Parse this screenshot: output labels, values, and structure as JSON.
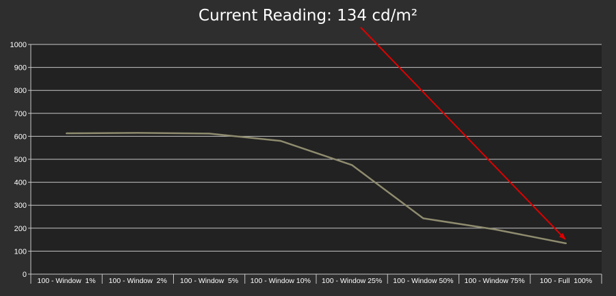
{
  "colors": {
    "background": "#2e2e2e",
    "plot_background": "#222222",
    "grid": "#c8c8c8",
    "line": "#8f8c6f",
    "arrow": "#e00000",
    "text": "#ffffff"
  },
  "chart_data": {
    "type": "line",
    "title": "Current Reading: 134 cd/m²",
    "xlabel": "",
    "ylabel": "",
    "categories": [
      "100 - Window  1%",
      "100 - Window  2%",
      "100 - Window  5%",
      "100 - Window 10%",
      "100 - Window 25%",
      "100 - Window 50%",
      "100 - Window 75%",
      "100 - Full  100%"
    ],
    "series": [
      {
        "values": [
          613,
          615,
          612,
          580,
          475,
          243,
          195,
          134
        ]
      }
    ],
    "ylim": [
      0,
      1000
    ],
    "yticks": [
      0,
      100,
      200,
      300,
      400,
      500,
      600,
      700,
      800,
      900,
      1000
    ],
    "grid": true,
    "legend": "none",
    "annotation": {
      "type": "arrow",
      "from": "title",
      "to_category": "100 - Full  100%",
      "to_value": 134
    }
  }
}
